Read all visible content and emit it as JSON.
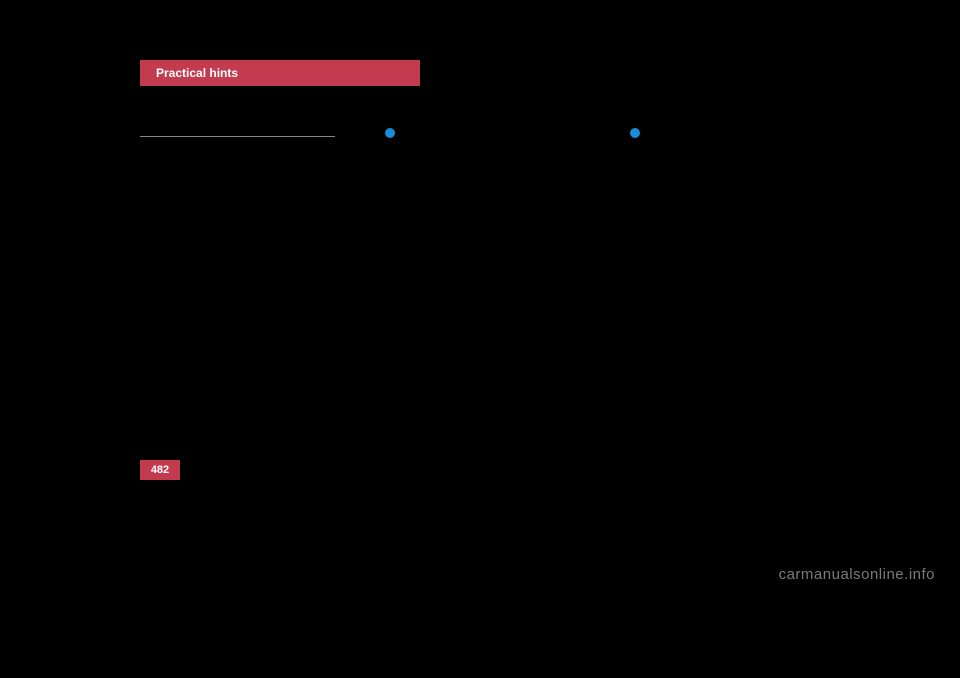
{
  "header": {
    "title": "Practical hints"
  },
  "pageNumber": "482",
  "watermark": "carmanualsonline.info",
  "colors": {
    "background": "#000000",
    "headerBg": "#c23b4f",
    "headerText": "#ffffff",
    "bulletColor": "#1a8cd8",
    "watermarkColor": "#7a7a7a"
  }
}
